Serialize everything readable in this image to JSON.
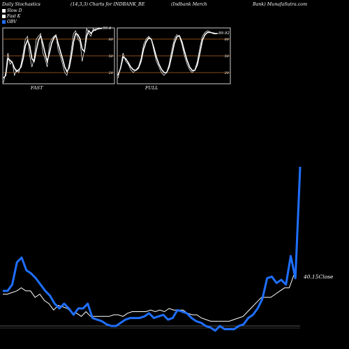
{
  "header": {
    "left": "Daily Stochastics",
    "params": "(14,3,3) Charts for INDBANK_BE",
    "company": "(Indbank Merch",
    "source": "Bank) MunafaSutra.com"
  },
  "legend": [
    {
      "label": "Slow  D",
      "color": "#ffffff"
    },
    {
      "label": "Fast K",
      "color": "#ffffff"
    },
    {
      "label": "OBV",
      "color": "#1f6fff"
    }
  ],
  "colors": {
    "obv": "#1f6fff",
    "close": "#ffffff",
    "grid": "#b5651d",
    "background": "#000000"
  },
  "chart_data": [
    {
      "type": "line",
      "name": "FAST",
      "label": "FAST",
      "last_value_label": "99.4",
      "ylim": [
        0,
        100
      ],
      "yticks": [
        20,
        50,
        80
      ],
      "series": [
        {
          "name": "Fast K",
          "values": [
            2,
            20,
            55,
            35,
            40,
            15,
            25,
            20,
            35,
            55,
            80,
            85,
            50,
            30,
            45,
            80,
            85,
            90,
            55,
            45,
            30,
            70,
            80,
            85,
            88,
            60,
            50,
            35,
            20,
            15,
            35,
            60,
            90,
            95,
            80,
            75,
            40,
            60,
            99,
            90,
            85,
            99,
            95,
            99,
            99,
            99
          ]
        },
        {
          "name": "Slow D",
          "values": [
            10,
            15,
            45,
            42,
            38,
            28,
            22,
            25,
            30,
            45,
            68,
            78,
            68,
            45,
            40,
            60,
            78,
            86,
            72,
            55,
            40,
            55,
            72,
            82,
            86,
            72,
            58,
            45,
            30,
            22,
            28,
            48,
            75,
            90,
            88,
            80,
            62,
            58,
            85,
            95,
            90,
            95,
            97,
            98,
            99,
            99
          ]
        }
      ]
    },
    {
      "type": "line",
      "name": "FULL",
      "label": "FULL",
      "last_value_label": "89.92",
      "ylim": [
        0,
        100
      ],
      "yticks": [
        20,
        50,
        80
      ],
      "series": [
        {
          "name": "Fast K",
          "values": [
            10,
            30,
            55,
            40,
            35,
            25,
            20,
            25,
            30,
            45,
            70,
            80,
            85,
            80,
            60,
            40,
            30,
            20,
            15,
            20,
            35,
            60,
            80,
            88,
            85,
            70,
            50,
            35,
            25,
            20,
            25,
            40,
            65,
            85,
            92,
            95,
            93,
            90,
            89,
            90
          ]
        },
        {
          "name": "Slow D",
          "values": [
            15,
            28,
            48,
            45,
            38,
            30,
            25,
            24,
            28,
            40,
            62,
            75,
            82,
            80,
            65,
            48,
            35,
            26,
            20,
            20,
            30,
            50,
            72,
            84,
            86,
            75,
            58,
            42,
            30,
            24,
            24,
            34,
            55,
            78,
            88,
            92,
            92,
            91,
            90,
            90
          ]
        }
      ]
    },
    {
      "type": "line",
      "name": "OBV and Close",
      "close_label": "40.15",
      "close_label_suffix": "Close",
      "series": [
        {
          "name": "OBV",
          "values": [
            22,
            22,
            26,
            40,
            43,
            35,
            33,
            30,
            26,
            22,
            19,
            14,
            11,
            14,
            11,
            7,
            11,
            11,
            14,
            5,
            4,
            3,
            1,
            0,
            0,
            2,
            4,
            5,
            5,
            5,
            6,
            8,
            5,
            6,
            7,
            4,
            5,
            10,
            9,
            8,
            5,
            3,
            2,
            0,
            -1,
            -3,
            0,
            -2,
            -2,
            -2,
            0,
            1,
            5,
            7,
            11,
            17,
            30,
            31,
            27,
            29,
            26,
            44,
            30,
            100
          ]
        },
        {
          "name": "Close",
          "values": [
            20,
            20,
            21,
            22,
            24,
            22,
            22,
            18,
            20,
            16,
            14,
            10,
            13,
            12,
            11,
            8,
            8,
            6,
            9,
            6,
            6,
            6,
            6,
            6,
            7,
            7,
            6,
            8,
            9,
            9,
            9,
            9,
            10,
            9,
            10,
            9,
            11,
            10,
            10,
            10,
            8,
            7,
            7,
            5,
            4,
            3,
            3,
            3,
            3,
            3,
            4,
            5,
            6,
            9,
            12,
            15,
            18,
            18,
            18,
            20,
            22,
            24,
            24,
            32
          ]
        }
      ]
    }
  ]
}
